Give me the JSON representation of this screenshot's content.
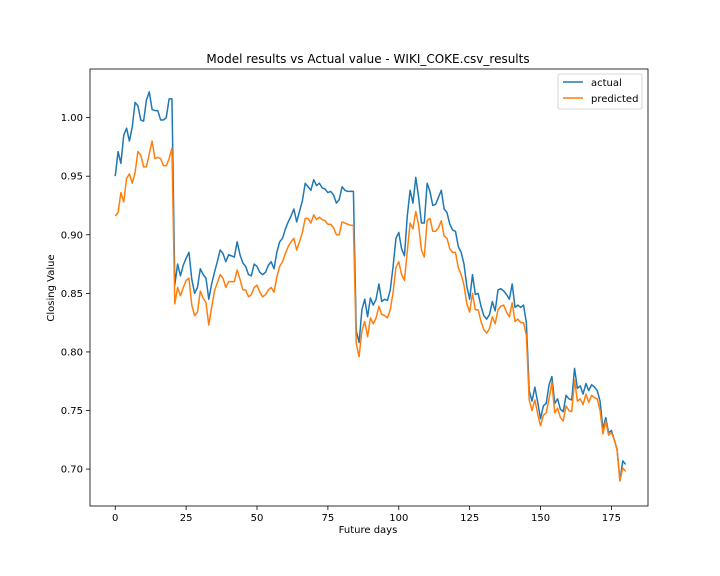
{
  "chart_data": {
    "type": "line",
    "title": "Model results vs Actual value - WIKI_COKE.csv_results",
    "xlabel": "Future days",
    "ylabel": "Closing Value",
    "xlim": [
      -8.9,
      187.9
    ],
    "ylim": [
      0.6685,
      1.0415
    ],
    "xticks": [
      0,
      25,
      50,
      75,
      100,
      125,
      150,
      175
    ],
    "yticks": [
      0.7,
      0.75,
      0.8,
      0.85,
      0.9,
      0.95,
      1.0
    ],
    "grid": false,
    "legend_position": "top-right",
    "series": [
      {
        "name": "actual",
        "color": "#1f77b4",
        "values": [
          0.95,
          0.971,
          0.961,
          0.985,
          0.991,
          0.98,
          0.992,
          1.013,
          1.01,
          0.998,
          0.997,
          1.015,
          1.022,
          1.007,
          1.006,
          1.006,
          0.998,
          0.998,
          1.0,
          1.016,
          1.016,
          0.857,
          0.875,
          0.865,
          0.874,
          0.88,
          0.885,
          0.862,
          0.85,
          0.855,
          0.871,
          0.866,
          0.863,
          0.845,
          0.858,
          0.868,
          0.877,
          0.887,
          0.884,
          0.877,
          0.883,
          0.882,
          0.881,
          0.894,
          0.883,
          0.876,
          0.873,
          0.866,
          0.865,
          0.875,
          0.873,
          0.868,
          0.866,
          0.868,
          0.874,
          0.877,
          0.871,
          0.885,
          0.894,
          0.897,
          0.905,
          0.911,
          0.916,
          0.922,
          0.911,
          0.92,
          0.929,
          0.944,
          0.941,
          0.938,
          0.947,
          0.942,
          0.944,
          0.94,
          0.939,
          0.936,
          0.937,
          0.934,
          0.927,
          0.93,
          0.941,
          0.938,
          0.937,
          0.937,
          0.937,
          0.818,
          0.808,
          0.836,
          0.845,
          0.83,
          0.846,
          0.84,
          0.845,
          0.858,
          0.843,
          0.845,
          0.844,
          0.853,
          0.873,
          0.897,
          0.902,
          0.888,
          0.882,
          0.916,
          0.938,
          0.927,
          0.949,
          0.932,
          0.91,
          0.91,
          0.944,
          0.937,
          0.925,
          0.926,
          0.932,
          0.938,
          0.922,
          0.919,
          0.909,
          0.904,
          0.903,
          0.89,
          0.885,
          0.875,
          0.856,
          0.845,
          0.866,
          0.849,
          0.85,
          0.839,
          0.831,
          0.828,
          0.832,
          0.843,
          0.835,
          0.853,
          0.854,
          0.852,
          0.849,
          0.845,
          0.858,
          0.838,
          0.84,
          0.838,
          0.84,
          0.825,
          0.767,
          0.758,
          0.77,
          0.757,
          0.743,
          0.754,
          0.756,
          0.772,
          0.779,
          0.756,
          0.76,
          0.751,
          0.749,
          0.763,
          0.76,
          0.759,
          0.786,
          0.769,
          0.771,
          0.764,
          0.773,
          0.767,
          0.772,
          0.77,
          0.767,
          0.758,
          0.734,
          0.744,
          0.731,
          0.733,
          0.725,
          0.717,
          0.69,
          0.707,
          0.704
        ]
      },
      {
        "name": "predicted",
        "color": "#ff7f0e",
        "values": [
          0.916,
          0.919,
          0.936,
          0.928,
          0.948,
          0.952,
          0.944,
          0.953,
          0.971,
          0.968,
          0.958,
          0.958,
          0.969,
          0.98,
          0.965,
          0.966,
          0.965,
          0.959,
          0.959,
          0.965,
          0.974,
          0.841,
          0.855,
          0.848,
          0.855,
          0.861,
          0.863,
          0.84,
          0.831,
          0.834,
          0.852,
          0.846,
          0.842,
          0.823,
          0.838,
          0.852,
          0.859,
          0.866,
          0.863,
          0.855,
          0.86,
          0.86,
          0.86,
          0.87,
          0.862,
          0.853,
          0.853,
          0.847,
          0.849,
          0.855,
          0.857,
          0.851,
          0.847,
          0.849,
          0.853,
          0.855,
          0.851,
          0.864,
          0.873,
          0.877,
          0.884,
          0.89,
          0.894,
          0.897,
          0.887,
          0.894,
          0.902,
          0.914,
          0.914,
          0.91,
          0.917,
          0.913,
          0.915,
          0.913,
          0.912,
          0.909,
          0.909,
          0.906,
          0.9,
          0.9,
          0.911,
          0.91,
          0.909,
          0.908,
          0.908,
          0.807,
          0.796,
          0.818,
          0.826,
          0.813,
          0.829,
          0.824,
          0.829,
          0.839,
          0.832,
          0.831,
          0.829,
          0.836,
          0.851,
          0.872,
          0.877,
          0.866,
          0.861,
          0.886,
          0.91,
          0.905,
          0.92,
          0.908,
          0.887,
          0.881,
          0.912,
          0.914,
          0.903,
          0.903,
          0.906,
          0.912,
          0.899,
          0.897,
          0.888,
          0.885,
          0.885,
          0.872,
          0.866,
          0.857,
          0.841,
          0.834,
          0.85,
          0.836,
          0.836,
          0.826,
          0.819,
          0.816,
          0.82,
          0.83,
          0.824,
          0.836,
          0.839,
          0.84,
          0.834,
          0.83,
          0.842,
          0.826,
          0.828,
          0.825,
          0.825,
          0.814,
          0.759,
          0.75,
          0.759,
          0.747,
          0.737,
          0.746,
          0.748,
          0.76,
          0.774,
          0.748,
          0.752,
          0.744,
          0.741,
          0.754,
          0.75,
          0.749,
          0.776,
          0.758,
          0.76,
          0.755,
          0.764,
          0.757,
          0.763,
          0.761,
          0.76,
          0.75,
          0.73,
          0.741,
          0.729,
          0.731,
          0.725,
          0.716,
          0.69,
          0.701,
          0.698
        ]
      }
    ]
  }
}
